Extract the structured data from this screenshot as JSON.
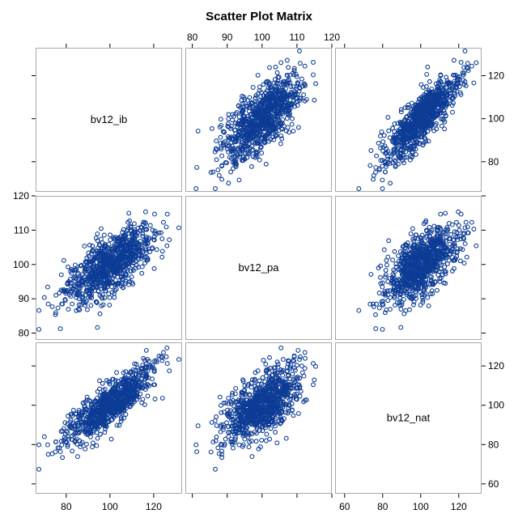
{
  "chart_data": {
    "type": "scatter-matrix",
    "title": "Scatter Plot Matrix",
    "variables": [
      "bv12_ib",
      "bv12_pa",
      "bv12_nat"
    ],
    "marker": "open-circle",
    "marker_color": "#0d3c96",
    "n_points": 900,
    "axes": {
      "bv12_ib": {
        "range": [
          66,
          133
        ],
        "ticks": [
          80,
          100,
          120
        ]
      },
      "bv12_pa": {
        "range": [
          78,
          120
        ],
        "ticks": [
          80,
          90,
          100,
          110,
          120
        ]
      },
      "bv12_nat": {
        "range": [
          55,
          132
        ],
        "ticks": [
          60,
          80,
          100,
          120
        ]
      }
    },
    "tick_placement": {
      "top": "bv12_pa",
      "bottom_col_1": "bv12_ib",
      "bottom_col_3": "bv12_nat",
      "left": "bv12_pa",
      "right_row_1": "bv12_ib",
      "right_row_3": "bv12_nat"
    },
    "summary": {
      "bv12_ib": {
        "mean": 100,
        "sd": 10
      },
      "bv12_pa": {
        "mean": 100,
        "sd": 5.5
      },
      "bv12_nat": {
        "mean": 100,
        "sd": 9.5
      },
      "correlations": {
        "ib_pa": 0.68,
        "ib_nat": 0.84,
        "pa_nat": 0.6
      }
    }
  }
}
